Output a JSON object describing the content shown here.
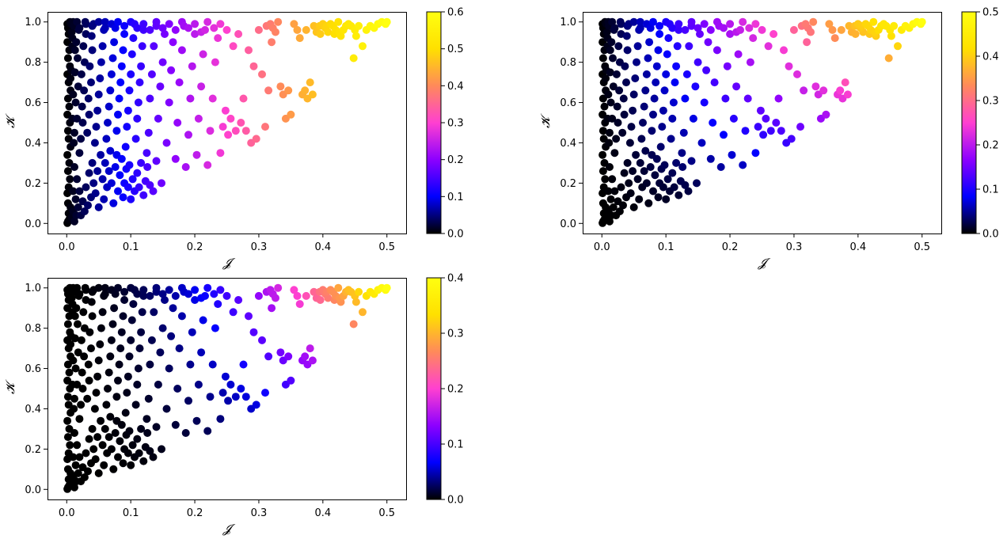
{
  "figure": {
    "title": "",
    "colormap": "gnuplot2",
    "colormap_stops": [
      "#000000",
      "#0000ff",
      "#8c00ff",
      "#ff40d0",
      "#ff8a5a",
      "#ffe000",
      "#ffff10"
    ]
  },
  "chart_data": [
    {
      "type": "scatter",
      "title": "",
      "xlabel": "𝓙",
      "ylabel": "𝓚",
      "xlim": [
        -0.03,
        0.53
      ],
      "ylim": [
        -0.05,
        1.05
      ],
      "xticks": [
        0.0,
        0.1,
        0.2,
        0.3,
        0.4,
        0.5
      ],
      "xtick_labels": [
        "0.0",
        "0.1",
        "0.2",
        "0.3",
        "0.4",
        "0.5"
      ],
      "yticks": [
        0.0,
        0.2,
        0.4,
        0.6,
        0.8,
        1.0
      ],
      "ytick_labels": [
        "0.0",
        "0.2",
        "0.4",
        "0.6",
        "0.8",
        "1.0"
      ],
      "colorbar": {
        "min": 0.0,
        "max": 0.6,
        "ticks": [
          0.0,
          0.1,
          0.2,
          0.3,
          0.4,
          0.5,
          0.6
        ],
        "tick_labels": [
          "0.0",
          "0.1",
          "0.2",
          "0.3",
          "0.4",
          "0.5",
          "0.6"
        ]
      },
      "color_variable": "J",
      "color_scale": 1.2,
      "grid": false
    },
    {
      "type": "scatter",
      "title": "",
      "xlabel": "𝓙",
      "ylabel": "𝓚",
      "xlim": [
        -0.03,
        0.53
      ],
      "ylim": [
        -0.05,
        1.05
      ],
      "xticks": [
        0.0,
        0.1,
        0.2,
        0.3,
        0.4,
        0.5
      ],
      "xtick_labels": [
        "0.0",
        "0.1",
        "0.2",
        "0.3",
        "0.4",
        "0.5"
      ],
      "yticks": [
        0.0,
        0.2,
        0.4,
        0.6,
        0.8,
        1.0
      ],
      "ytick_labels": [
        "0.0",
        "0.2",
        "0.4",
        "0.6",
        "0.8",
        "1.0"
      ],
      "colorbar": {
        "min": 0.0,
        "max": 0.5,
        "ticks": [
          0.0,
          0.1,
          0.2,
          0.3,
          0.4,
          0.5
        ],
        "tick_labels": [
          "0.0",
          "0.1",
          "0.2",
          "0.3",
          "0.4",
          "0.5"
        ]
      },
      "color_variable": "J*K",
      "color_scale": 1.0,
      "grid": false
    },
    {
      "type": "scatter",
      "title": "",
      "xlabel": "𝓙",
      "ylabel": "𝓚",
      "xlim": [
        -0.03,
        0.53
      ],
      "ylim": [
        -0.05,
        1.05
      ],
      "xticks": [
        0.0,
        0.1,
        0.2,
        0.3,
        0.4,
        0.5
      ],
      "xtick_labels": [
        "0.0",
        "0.1",
        "0.2",
        "0.3",
        "0.4",
        "0.5"
      ],
      "yticks": [
        0.0,
        0.2,
        0.4,
        0.6,
        0.8,
        1.0
      ],
      "ytick_labels": [
        "0.0",
        "0.2",
        "0.4",
        "0.6",
        "0.8",
        "1.0"
      ],
      "colorbar": {
        "min": 0.0,
        "max": 0.4,
        "ticks": [
          0.0,
          0.1,
          0.2,
          0.3,
          0.4
        ],
        "tick_labels": [
          "0.0",
          "0.1",
          "0.2",
          "0.3",
          "0.4"
        ]
      },
      "color_variable": "J*J*K",
      "color_scale": 1.6,
      "grid": false
    }
  ],
  "points": [
    [
      0.001,
      0.002
    ],
    [
      0.002,
      0.01
    ],
    [
      0.004,
      0.02
    ],
    [
      0.003,
      0.05
    ],
    [
      0.006,
      0.08
    ],
    [
      0.002,
      0.1
    ],
    [
      0.008,
      0.03
    ],
    [
      0.01,
      0.06
    ],
    [
      0.012,
      0.01
    ],
    [
      0.015,
      0.04
    ],
    [
      0.001,
      0.15
    ],
    [
      0.003,
      0.18
    ],
    [
      0.005,
      0.22
    ],
    [
      0.002,
      0.26
    ],
    [
      0.004,
      0.3
    ],
    [
      0.001,
      0.34
    ],
    [
      0.006,
      0.38
    ],
    [
      0.003,
      0.42
    ],
    [
      0.002,
      0.46
    ],
    [
      0.005,
      0.5
    ],
    [
      0.001,
      0.54
    ],
    [
      0.004,
      0.58
    ],
    [
      0.002,
      0.62
    ],
    [
      0.006,
      0.66
    ],
    [
      0.003,
      0.7
    ],
    [
      0.001,
      0.74
    ],
    [
      0.005,
      0.78
    ],
    [
      0.002,
      0.82
    ],
    [
      0.004,
      0.86
    ],
    [
      0.001,
      0.9
    ],
    [
      0.003,
      0.94
    ],
    [
      0.002,
      0.97
    ],
    [
      0.005,
      1.0
    ],
    [
      0.001,
      0.99
    ],
    [
      0.008,
      0.95
    ],
    [
      0.009,
      0.88
    ],
    [
      0.007,
      0.76
    ],
    [
      0.01,
      0.64
    ],
    [
      0.009,
      0.52
    ],
    [
      0.011,
      0.4
    ],
    [
      0.012,
      0.28
    ],
    [
      0.01,
      0.16
    ],
    [
      0.014,
      0.12
    ],
    [
      0.016,
      0.22
    ],
    [
      0.018,
      0.08
    ],
    [
      0.02,
      0.16
    ],
    [
      0.022,
      0.04
    ],
    [
      0.025,
      0.11
    ],
    [
      0.028,
      0.06
    ],
    [
      0.03,
      0.18
    ],
    [
      0.033,
      0.09
    ],
    [
      0.035,
      0.25
    ],
    [
      0.038,
      0.13
    ],
    [
      0.04,
      0.3
    ],
    [
      0.042,
      0.2
    ],
    [
      0.045,
      0.15
    ],
    [
      0.048,
      0.26
    ],
    [
      0.05,
      0.08
    ],
    [
      0.053,
      0.34
    ],
    [
      0.056,
      0.22
    ],
    [
      0.058,
      0.12
    ],
    [
      0.06,
      0.3
    ],
    [
      0.063,
      0.18
    ],
    [
      0.066,
      0.26
    ],
    [
      0.068,
      0.36
    ],
    [
      0.07,
      0.2
    ],
    [
      0.073,
      0.1
    ],
    [
      0.076,
      0.28
    ],
    [
      0.078,
      0.34
    ],
    [
      0.08,
      0.16
    ],
    [
      0.083,
      0.24
    ],
    [
      0.086,
      0.32
    ],
    [
      0.088,
      0.13
    ],
    [
      0.09,
      0.2
    ],
    [
      0.093,
      0.27
    ],
    [
      0.096,
      0.18
    ],
    [
      0.098,
      0.29
    ],
    [
      0.1,
      0.12
    ],
    [
      0.103,
      0.22
    ],
    [
      0.106,
      0.16
    ],
    [
      0.11,
      0.25
    ],
    [
      0.113,
      0.18
    ],
    [
      0.116,
      0.3
    ],
    [
      0.12,
      0.14
    ],
    [
      0.123,
      0.21
    ],
    [
      0.126,
      0.28
    ],
    [
      0.13,
      0.19
    ],
    [
      0.135,
      0.16
    ],
    [
      0.14,
      0.31
    ],
    [
      0.148,
      0.2
    ],
    [
      0.012,
      0.45
    ],
    [
      0.016,
      0.52
    ],
    [
      0.014,
      0.6
    ],
    [
      0.018,
      0.68
    ],
    [
      0.013,
      0.75
    ],
    [
      0.017,
      0.82
    ],
    [
      0.015,
      0.9
    ],
    [
      0.019,
      0.96
    ],
    [
      0.016,
      1.0
    ],
    [
      0.02,
      0.35
    ],
    [
      0.022,
      0.42
    ],
    [
      0.025,
      0.5
    ],
    [
      0.024,
      0.58
    ],
    [
      0.027,
      0.66
    ],
    [
      0.023,
      0.74
    ],
    [
      0.028,
      0.8
    ],
    [
      0.026,
      0.88
    ],
    [
      0.03,
      0.94
    ],
    [
      0.029,
      1.0
    ],
    [
      0.032,
      0.45
    ],
    [
      0.035,
      0.54
    ],
    [
      0.034,
      0.62
    ],
    [
      0.038,
      0.7
    ],
    [
      0.036,
      0.78
    ],
    [
      0.04,
      0.86
    ],
    [
      0.039,
      0.93
    ],
    [
      0.042,
      0.99
    ],
    [
      0.044,
      0.4
    ],
    [
      0.046,
      0.48
    ],
    [
      0.048,
      0.56
    ],
    [
      0.05,
      0.64
    ],
    [
      0.052,
      0.72
    ],
    [
      0.054,
      0.8
    ],
    [
      0.056,
      0.88
    ],
    [
      0.058,
      0.96
    ],
    [
      0.06,
      1.0
    ],
    [
      0.062,
      0.42
    ],
    [
      0.064,
      0.5
    ],
    [
      0.066,
      0.58
    ],
    [
      0.068,
      0.66
    ],
    [
      0.07,
      0.74
    ],
    [
      0.072,
      0.82
    ],
    [
      0.074,
      0.9
    ],
    [
      0.076,
      0.97
    ],
    [
      0.078,
      0.46
    ],
    [
      0.08,
      0.54
    ],
    [
      0.082,
      0.62
    ],
    [
      0.084,
      0.7
    ],
    [
      0.086,
      0.78
    ],
    [
      0.088,
      0.86
    ],
    [
      0.09,
      0.94
    ],
    [
      0.092,
      0.38
    ],
    [
      0.094,
      0.48
    ],
    [
      0.096,
      0.56
    ],
    [
      0.098,
      0.66
    ],
    [
      0.1,
      0.74
    ],
    [
      0.102,
      0.84
    ],
    [
      0.104,
      0.92
    ],
    [
      0.106,
      0.99
    ],
    [
      0.108,
      0.42
    ],
    [
      0.11,
      0.52
    ],
    [
      0.112,
      0.6
    ],
    [
      0.114,
      0.7
    ],
    [
      0.116,
      0.78
    ],
    [
      0.118,
      0.88
    ],
    [
      0.12,
      0.96
    ],
    [
      0.125,
      0.35
    ],
    [
      0.128,
      0.45
    ],
    [
      0.13,
      0.62
    ],
    [
      0.133,
      0.74
    ],
    [
      0.136,
      0.88
    ],
    [
      0.14,
      0.98
    ],
    [
      0.143,
      0.52
    ],
    [
      0.146,
      0.68
    ],
    [
      0.15,
      0.8
    ],
    [
      0.153,
      0.94
    ],
    [
      0.156,
      0.4
    ],
    [
      0.16,
      0.6
    ],
    [
      0.163,
      0.76
    ],
    [
      0.166,
      0.9
    ],
    [
      0.17,
      0.32
    ],
    [
      0.173,
      0.5
    ],
    [
      0.176,
      0.7
    ],
    [
      0.18,
      0.86
    ],
    [
      0.183,
      0.98
    ],
    [
      0.186,
      0.28
    ],
    [
      0.19,
      0.44
    ],
    [
      0.193,
      0.62
    ],
    [
      0.196,
      0.78
    ],
    [
      0.2,
      0.94
    ],
    [
      0.203,
      0.34
    ],
    [
      0.206,
      0.52
    ],
    [
      0.21,
      0.68
    ],
    [
      0.213,
      0.84
    ],
    [
      0.216,
      0.96
    ],
    [
      0.22,
      0.29
    ],
    [
      0.224,
      0.46
    ],
    [
      0.228,
      0.62
    ],
    [
      0.232,
      0.8
    ],
    [
      0.236,
      0.92
    ],
    [
      0.24,
      0.35
    ],
    [
      0.244,
      0.48
    ],
    [
      0.248,
      0.56
    ],
    [
      0.252,
      0.44
    ],
    [
      0.256,
      0.52
    ],
    [
      0.26,
      0.88
    ],
    [
      0.264,
      0.46
    ],
    [
      0.268,
      0.94
    ],
    [
      0.272,
      0.5
    ],
    [
      0.276,
      0.62
    ],
    [
      0.28,
      0.46
    ],
    [
      0.284,
      0.86
    ],
    [
      0.288,
      0.4
    ],
    [
      0.292,
      0.78
    ],
    [
      0.296,
      0.42
    ],
    [
      0.3,
      0.96
    ],
    [
      0.305,
      0.74
    ],
    [
      0.31,
      0.48
    ],
    [
      0.315,
      0.66
    ],
    [
      0.32,
      0.9
    ],
    [
      0.312,
      0.98
    ],
    [
      0.318,
      0.99
    ],
    [
      0.322,
      0.97
    ],
    [
      0.326,
      0.95
    ],
    [
      0.33,
      1.0
    ],
    [
      0.334,
      0.68
    ],
    [
      0.338,
      0.64
    ],
    [
      0.342,
      0.52
    ],
    [
      0.346,
      0.66
    ],
    [
      0.35,
      0.54
    ],
    [
      0.355,
      0.99
    ],
    [
      0.36,
      0.96
    ],
    [
      0.364,
      0.92
    ],
    [
      0.368,
      0.64
    ],
    [
      0.372,
      0.66
    ],
    [
      0.376,
      0.62
    ],
    [
      0.38,
      0.7
    ],
    [
      0.384,
      0.64
    ],
    [
      0.39,
      0.95
    ],
    [
      0.395,
      0.98
    ],
    [
      0.4,
      0.99
    ],
    [
      0.404,
      0.97
    ],
    [
      0.408,
      0.95
    ],
    [
      0.412,
      0.99
    ],
    [
      0.416,
      0.98
    ],
    [
      0.42,
      0.96
    ],
    [
      0.424,
      1.0
    ],
    [
      0.428,
      0.93
    ],
    [
      0.432,
      0.96
    ],
    [
      0.436,
      0.98
    ],
    [
      0.44,
      0.99
    ],
    [
      0.448,
      0.82
    ],
    [
      0.452,
      0.93
    ],
    [
      0.456,
      0.98
    ],
    [
      0.462,
      0.88
    ],
    [
      0.468,
      0.96
    ],
    [
      0.474,
      0.98
    ],
    [
      0.48,
      0.97
    ],
    [
      0.486,
      0.99
    ],
    [
      0.492,
      1.0
    ],
    [
      0.498,
      0.99
    ],
    [
      0.5,
      1.0
    ],
    [
      0.45,
      0.96
    ],
    [
      0.444,
      0.98
    ],
    [
      0.426,
      0.95
    ],
    [
      0.418,
      0.94
    ],
    [
      0.406,
      0.98
    ],
    [
      0.396,
      0.94
    ],
    [
      0.386,
      0.98
    ],
    [
      0.374,
      0.96
    ],
    [
      0.25,
      0.96
    ],
    [
      0.24,
      0.99
    ],
    [
      0.23,
      0.97
    ],
    [
      0.22,
      1.0
    ],
    [
      0.21,
      0.95
    ],
    [
      0.2,
      0.99
    ],
    [
      0.19,
      0.97
    ],
    [
      0.18,
      1.0
    ],
    [
      0.17,
      0.96
    ],
    [
      0.16,
      0.99
    ],
    [
      0.15,
      0.97
    ],
    [
      0.14,
      1.0
    ],
    [
      0.13,
      0.96
    ],
    [
      0.12,
      0.99
    ],
    [
      0.11,
      0.97
    ],
    [
      0.1,
      1.0
    ],
    [
      0.09,
      0.98
    ],
    [
      0.08,
      1.0
    ],
    [
      0.07,
      0.99
    ],
    [
      0.06,
      0.97
    ],
    [
      0.05,
      1.0
    ],
    [
      0.04,
      0.98
    ],
    [
      0.03,
      0.99
    ],
    [
      0.02,
      0.97
    ],
    [
      0.01,
      1.0
    ],
    [
      0.007,
      0.99
    ],
    [
      0.011,
      0.98
    ],
    [
      0.009,
      0.92
    ],
    [
      0.013,
      0.86
    ],
    [
      0.006,
      0.72
    ]
  ]
}
